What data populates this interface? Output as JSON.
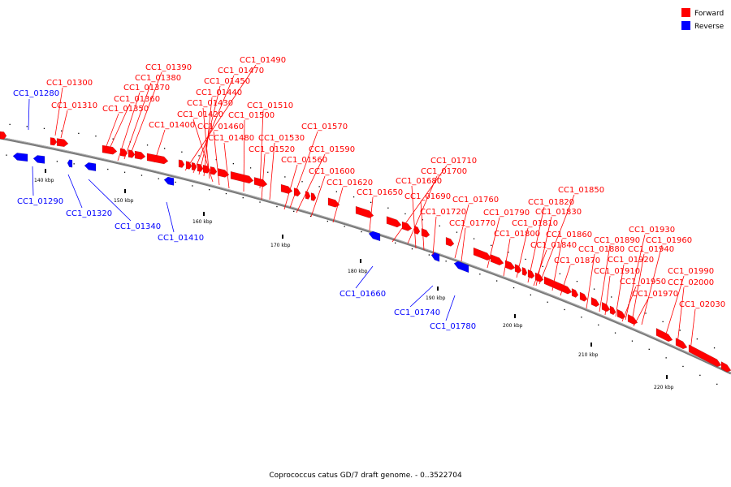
{
  "caption": "Coprococcus catus GD/7 draft genome. - 0..3522704",
  "legend": [
    {
      "label": "Forward",
      "color": "#ff0000"
    },
    {
      "label": "Reverse",
      "color": "#0000ff"
    }
  ],
  "colors": {
    "forward": "#ff0000",
    "reverse": "#0000ff",
    "backbone": "#808080"
  },
  "ticks": [
    "140 kbp",
    "150 kbp",
    "160 kbp",
    "170 kbp",
    "180 kbp",
    "190 kbp",
    "200 kbp",
    "210 kbp",
    "220 kbp"
  ],
  "forward_labels": [
    "CC1_01300",
    "CC1_01310",
    "CC1_01390",
    "CC1_01380",
    "CC1_01370",
    "CC1_01360",
    "CC1_01350",
    "CC1_01490",
    "CC1_01470",
    "CC1_01450",
    "CC1_01440",
    "CC1_01430",
    "CC1_01420",
    "CC1_01400",
    "CC1_01510",
    "CC1_01500",
    "CC1_01460",
    "CC1_01480",
    "CC1_01530",
    "CC1_01520",
    "CC1_01570",
    "CC1_01590",
    "CC1_01560",
    "CC1_01600",
    "CC1_01620",
    "CC1_01650",
    "CC1_01710",
    "CC1_01700",
    "CC1_01680",
    "CC1_01690",
    "CC1_01720",
    "CC1_01760",
    "CC1_01770",
    "CC1_01850",
    "CC1_01820",
    "CC1_01830",
    "CC1_01790",
    "CC1_01810",
    "CC1_01800",
    "CC1_01860",
    "CC1_01840",
    "CC1_01870",
    "CC1_01930",
    "CC1_01890",
    "CC1_01960",
    "CC1_01880",
    "CC1_01940",
    "CC1_01920",
    "CC1_01910",
    "CC1_01990",
    "CC1_01950",
    "CC1_02000",
    "CC1_01970",
    "CC1_02030"
  ],
  "reverse_labels": [
    "CC1_01280",
    "CC1_01290",
    "CC1_01320",
    "CC1_01340",
    "CC1_01410",
    "CC1_01660",
    "CC1_01740",
    "CC1_01780"
  ]
}
